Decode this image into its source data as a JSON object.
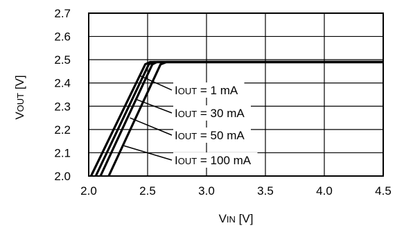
{
  "chart_data": {
    "type": "line",
    "xlabel": {
      "main": "V",
      "sub": "IN",
      "unit": " [V]"
    },
    "ylabel": {
      "main": "V",
      "sub": "OUT",
      "unit": " [V]"
    },
    "xlim": [
      2.0,
      4.5
    ],
    "ylim": [
      2.0,
      2.7
    ],
    "xticks": [
      "2.0",
      "2.5",
      "3.0",
      "3.5",
      "4.0",
      "4.5"
    ],
    "yticks": [
      "2.0",
      "2.1",
      "2.2",
      "2.3",
      "2.4",
      "2.5",
      "2.6",
      "2.7"
    ],
    "grid": true,
    "series": [
      {
        "name": "I_OUT = 1 mA",
        "label_main": "I",
        "label_sub": "OUT",
        "label_rest": " = 1 mA",
        "x": [
          2.02,
          2.48,
          2.52,
          4.5
        ],
        "y": [
          2.0,
          2.48,
          2.49,
          2.49
        ]
      },
      {
        "name": "I_OUT = 30 mA",
        "label_main": "I",
        "label_sub": "OUT",
        "label_rest": " = 30 mA",
        "x": [
          2.06,
          2.51,
          2.55,
          4.5
        ],
        "y": [
          2.0,
          2.48,
          2.49,
          2.49
        ]
      },
      {
        "name": "I_OUT = 50 mA",
        "label_main": "I",
        "label_sub": "OUT",
        "label_rest": " = 50 mA",
        "x": [
          2.1,
          2.54,
          2.58,
          4.5
        ],
        "y": [
          2.0,
          2.48,
          2.49,
          2.49
        ]
      },
      {
        "name": "I_OUT = 100 mA",
        "label_main": "I",
        "label_sub": "OUT",
        "label_rest": " = 100 mA",
        "x": [
          2.17,
          2.61,
          2.66,
          4.5
        ],
        "y": [
          2.0,
          2.48,
          2.49,
          2.49
        ]
      }
    ]
  }
}
